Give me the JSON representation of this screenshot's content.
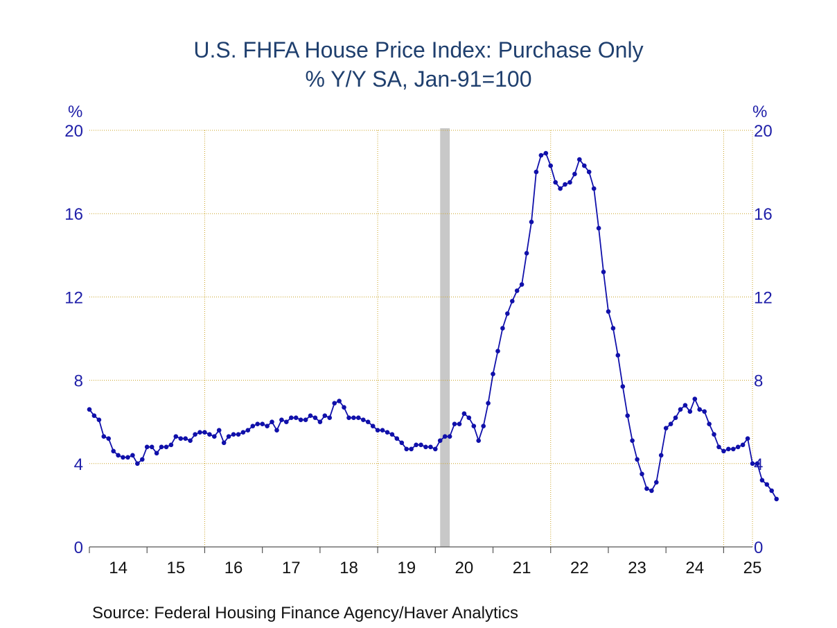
{
  "chart_data": {
    "type": "line",
    "title": "U.S. FHFA House Price Index: Purchase Only",
    "subtitle": "% Y/Y     SA, Jan-91=100",
    "ylabel_left": "%",
    "ylabel_right": "%",
    "ylim": [
      0,
      20
    ],
    "yticks": [
      0,
      4,
      8,
      12,
      16,
      20
    ],
    "xlim": [
      2014.0,
      2025.5
    ],
    "xticks": [
      {
        "label": "14",
        "year": 2014
      },
      {
        "label": "15",
        "year": 2015
      },
      {
        "label": "16",
        "year": 2016
      },
      {
        "label": "17",
        "year": 2017
      },
      {
        "label": "18",
        "year": 2018
      },
      {
        "label": "19",
        "year": 2019
      },
      {
        "label": "20",
        "year": 2020
      },
      {
        "label": "21",
        "year": 2021
      },
      {
        "label": "22",
        "year": 2022
      },
      {
        "label": "23",
        "year": 2023
      },
      {
        "label": "24",
        "year": 2024
      },
      {
        "label": "25",
        "year": 2025
      }
    ],
    "grid": true,
    "recession": {
      "start": "2020-02",
      "end": "2020-04"
    },
    "line_color": "#1010aa",
    "series": [
      {
        "start": "2014-01",
        "frequency": "monthly",
        "values": [
          6.6,
          6.3,
          6.1,
          5.3,
          5.2,
          4.6,
          4.4,
          4.3,
          4.3,
          4.4,
          4.0,
          4.2,
          4.8,
          4.8,
          4.5,
          4.8,
          4.8,
          4.9,
          5.3,
          5.2,
          5.2,
          5.1,
          5.4,
          5.5,
          5.5,
          5.4,
          5.3,
          5.6,
          5.0,
          5.3,
          5.4,
          5.4,
          5.5,
          5.6,
          5.8,
          5.9,
          5.9,
          5.8,
          6.0,
          5.6,
          6.1,
          6.0,
          6.2,
          6.2,
          6.1,
          6.1,
          6.3,
          6.2,
          6.0,
          6.3,
          6.2,
          6.9,
          7.0,
          6.7,
          6.2,
          6.2,
          6.2,
          6.1,
          6.0,
          5.8,
          5.6,
          5.6,
          5.5,
          5.4,
          5.2,
          5.0,
          4.7,
          4.7,
          4.9,
          4.9,
          4.8,
          4.8,
          4.7,
          5.1,
          5.3,
          5.3,
          5.9,
          5.9,
          6.4,
          6.2,
          5.8,
          5.1,
          5.8,
          6.9,
          8.3,
          9.4,
          10.5,
          11.2,
          11.8,
          12.3,
          12.6,
          14.1,
          15.6,
          18.0,
          18.8,
          18.9,
          18.3,
          17.5,
          17.2,
          17.4,
          17.5,
          17.9,
          18.6,
          18.3,
          18.0,
          17.2,
          15.3,
          13.2,
          11.3,
          10.5,
          9.2,
          7.7,
          6.3,
          5.1,
          4.2,
          3.5,
          2.8,
          2.7,
          3.1,
          4.4,
          5.7,
          5.9,
          6.2,
          6.6,
          6.8,
          6.5,
          7.1,
          6.6,
          6.5,
          5.9,
          5.4,
          4.8,
          4.6,
          4.7,
          4.7,
          4.8,
          4.9,
          5.2,
          4.0,
          4.0,
          3.2,
          3.0,
          2.7,
          2.3
        ]
      }
    ]
  },
  "source": "Source:  Federal Housing Finance Agency/Haver Analytics"
}
